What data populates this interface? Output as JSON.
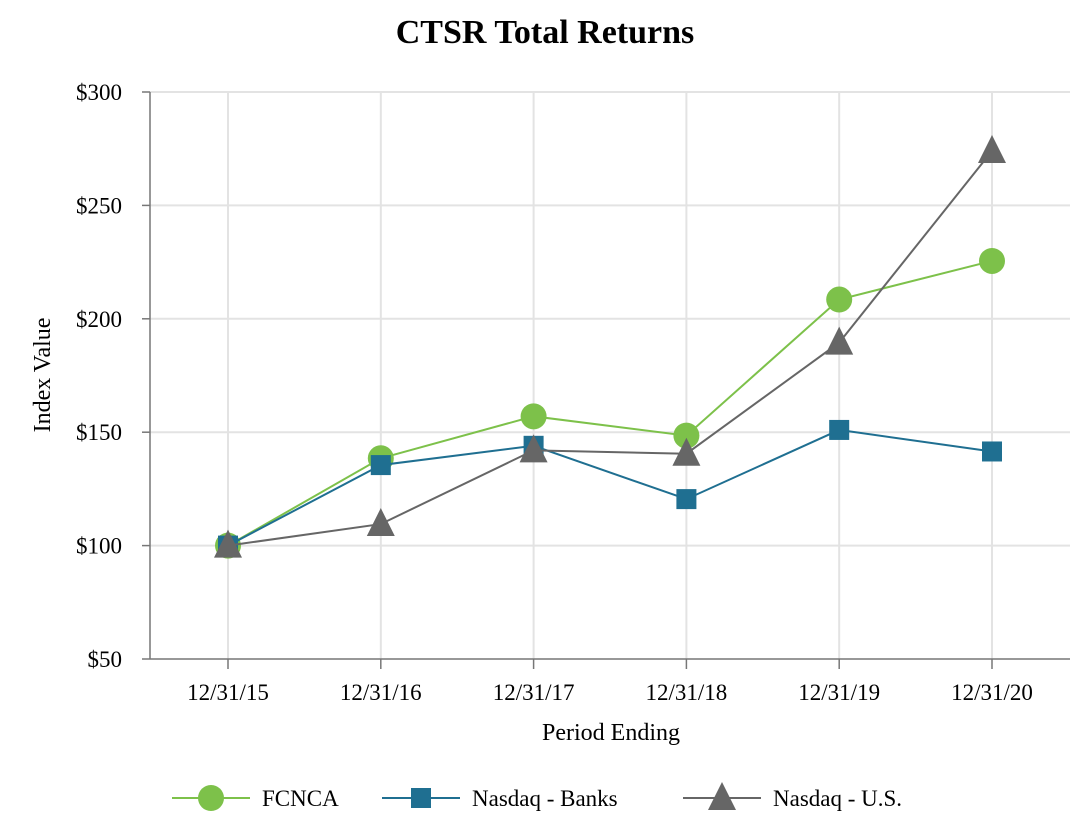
{
  "chart_data": {
    "type": "line",
    "title": "CTSR Total Returns",
    "xlabel": "Period Ending",
    "ylabel": "Index Value",
    "categories": [
      "12/31/15",
      "12/31/16",
      "12/31/17",
      "12/31/18",
      "12/31/19",
      "12/31/20"
    ],
    "ylim": [
      50,
      300
    ],
    "yticks": [
      50,
      100,
      150,
      200,
      250,
      300
    ],
    "ytick_labels": [
      "$50",
      "$100",
      "$150",
      "$200",
      "$250",
      "$300"
    ],
    "grid": true,
    "legend_position": "bottom",
    "series": [
      {
        "name": "FCNCA",
        "marker": "circle",
        "color": "#7dc14a",
        "values": [
          100,
          138.5,
          157,
          148.5,
          208.5,
          225.5
        ]
      },
      {
        "name": "Nasdaq - Banks",
        "marker": "square",
        "color": "#1f6f91",
        "values": [
          100,
          135.5,
          144,
          120.5,
          151,
          141.5
        ]
      },
      {
        "name": "Nasdaq - U.S.",
        "marker": "triangle",
        "color": "#666666",
        "values": [
          100,
          109.5,
          142,
          140.5,
          189.5,
          274
        ]
      }
    ]
  }
}
